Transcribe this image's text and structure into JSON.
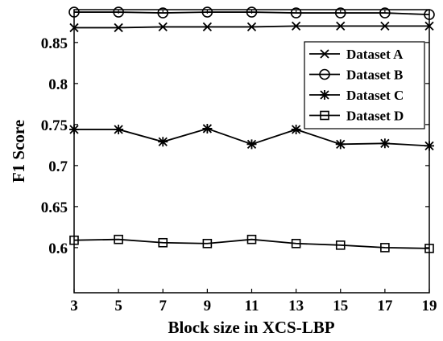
{
  "chart_data": {
    "type": "line",
    "title": "",
    "xlabel": "Block size in XCS-LBP",
    "ylabel": "F1 Score",
    "x": [
      3,
      5,
      7,
      9,
      11,
      13,
      15,
      17,
      19
    ],
    "x_ticks": [
      "3",
      "5",
      "7",
      "9",
      "11",
      "13",
      "15",
      "17",
      "19"
    ],
    "y_ticks": [
      "0.6",
      "0.65",
      "0.7",
      "0.75",
      "0.8",
      "0.85"
    ],
    "xlim": [
      3,
      19
    ],
    "ylim": [
      0.545,
      0.89
    ],
    "grid": false,
    "legend_position": "top-right",
    "series": [
      {
        "name": "Dataset A",
        "marker": "x-mark",
        "values": [
          0.868,
          0.868,
          0.869,
          0.869,
          0.869,
          0.87,
          0.87,
          0.87,
          0.87
        ]
      },
      {
        "name": "Dataset B",
        "marker": "circle",
        "values": [
          0.887,
          0.887,
          0.886,
          0.887,
          0.887,
          0.886,
          0.886,
          0.886,
          0.884
        ]
      },
      {
        "name": "Dataset C",
        "marker": "asterisk",
        "values": [
          0.744,
          0.744,
          0.729,
          0.745,
          0.726,
          0.744,
          0.726,
          0.727,
          0.724
        ]
      },
      {
        "name": "Dataset D",
        "marker": "square",
        "values": [
          0.609,
          0.61,
          0.606,
          0.605,
          0.61,
          0.605,
          0.603,
          0.6,
          0.599
        ]
      }
    ]
  }
}
